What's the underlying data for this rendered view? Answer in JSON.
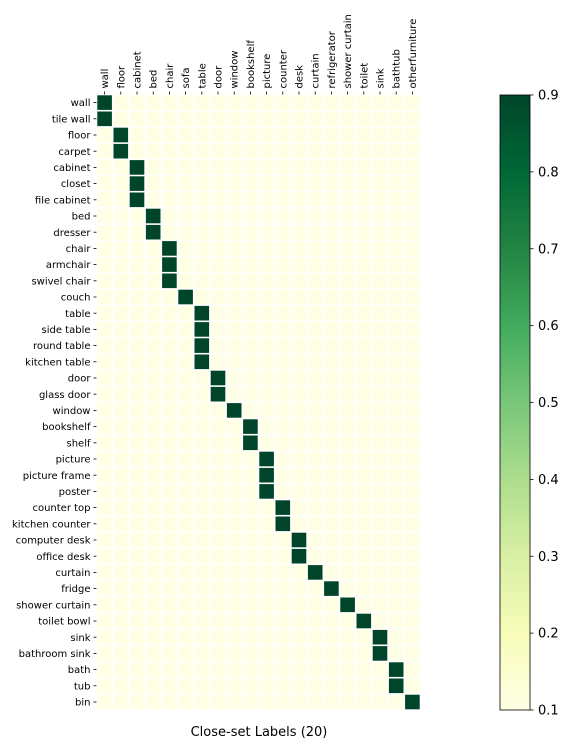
{
  "chart_data": {
    "type": "heatmap",
    "xlabel": "Close-set Labels (20)",
    "ylabel": "",
    "x_categories": [
      "wall",
      "floor",
      "cabinet",
      "bed",
      "chair",
      "sofa",
      "table",
      "door",
      "window",
      "bookshelf",
      "picture",
      "counter",
      "desk",
      "curtain",
      "refrigerator",
      "shower curtain",
      "toilet",
      "sink",
      "bathtub",
      "otherfurniture"
    ],
    "y_categories": [
      "wall",
      "tile wall",
      "floor",
      "carpet",
      "cabinet",
      "closet",
      "file cabinet",
      "bed",
      "dresser",
      "chair",
      "armchair",
      "swivel chair",
      "couch",
      "table",
      "side table",
      "round table",
      "kitchen table",
      "door",
      "glass door",
      "window",
      "bookshelf",
      "shelf",
      "picture",
      "picture frame",
      "poster",
      "counter top",
      "kitchen counter",
      "computer desk",
      "office desk",
      "curtain",
      "fridge",
      "shower curtain",
      "toilet bowl",
      "sink",
      "bathroom sink",
      "bath",
      "tub",
      "bin"
    ],
    "match_column": [
      0,
      0,
      1,
      1,
      2,
      2,
      2,
      3,
      3,
      4,
      4,
      4,
      5,
      6,
      6,
      6,
      6,
      7,
      7,
      8,
      9,
      9,
      10,
      10,
      10,
      11,
      11,
      12,
      12,
      13,
      14,
      15,
      16,
      17,
      17,
      18,
      18,
      19
    ],
    "match_value": 0.9,
    "background_value": 0.1,
    "colorbar": {
      "min": 0.1,
      "max": 0.9,
      "ticks": [
        "0.1",
        "0.2",
        "0.3",
        "0.4",
        "0.5",
        "0.6",
        "0.7",
        "0.8",
        "0.9"
      ],
      "colormap": "Greens",
      "stops": [
        "#ffffe5",
        "#f7fcb9",
        "#d9f0a3",
        "#addd8e",
        "#78c679",
        "#41ab5d",
        "#238443",
        "#006837",
        "#004529"
      ]
    },
    "grid": true,
    "cell_border_color": "#ffffff"
  }
}
